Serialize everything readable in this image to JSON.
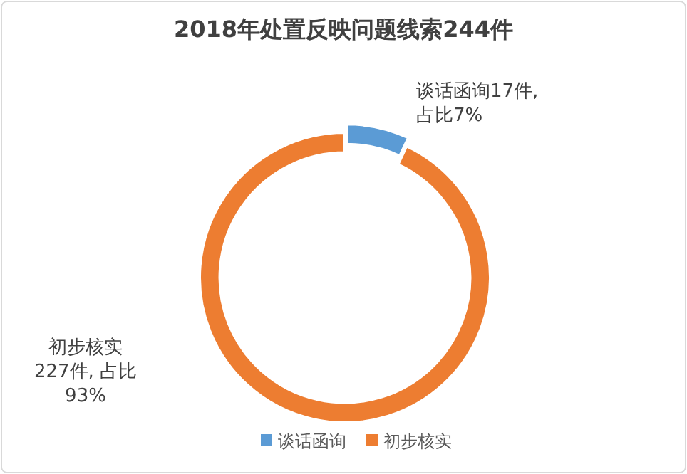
{
  "chart_data": {
    "type": "donut",
    "title": "2018年处置反映问题线索244件",
    "categories": [
      "谈话函询",
      "初步核实"
    ],
    "values": [
      17,
      227
    ],
    "colors": [
      "#5b9bd5",
      "#ed7d31"
    ],
    "value_labels": [
      "谈话函询17件, 占比7%",
      "初步核实 227件, 占比 93%"
    ],
    "legend": "bottom"
  }
}
